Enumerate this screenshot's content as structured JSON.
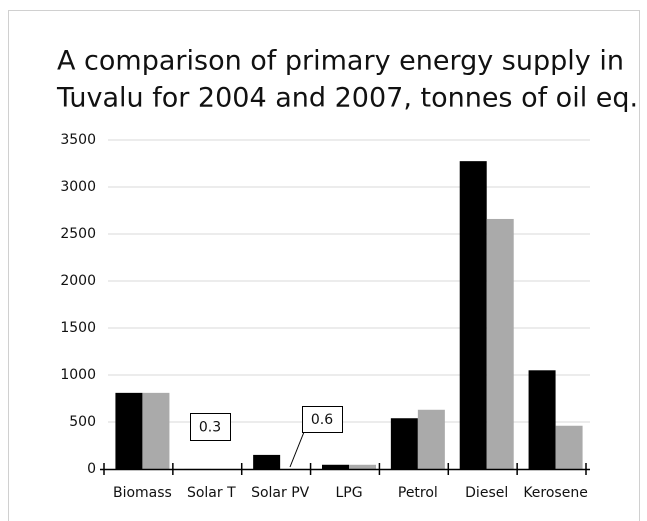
{
  "chart_data": {
    "type": "bar",
    "title": [
      "A comparison of primary energy supply in",
      "Tuvalu for 2004 and 2007, tonnes of oil eq."
    ],
    "categories": [
      "Biomass",
      "Solar T",
      "Solar PV",
      "LPG",
      "Petrol",
      "Diesel",
      "Kerosene"
    ],
    "series": [
      {
        "color": "#000000",
        "values": [
          810,
          0.3,
          150,
          45,
          540,
          3275,
          1050
        ]
      },
      {
        "color": "#aaaaaa",
        "values": [
          810,
          0.3,
          0.6,
          45,
          630,
          2660,
          460
        ]
      }
    ],
    "annotations": [
      "0.3",
      "0.6"
    ],
    "ylim": [
      0,
      3500
    ],
    "yticks": [
      0,
      500,
      1000,
      1500,
      2000,
      2500,
      3000,
      3500
    ],
    "grid": true
  }
}
